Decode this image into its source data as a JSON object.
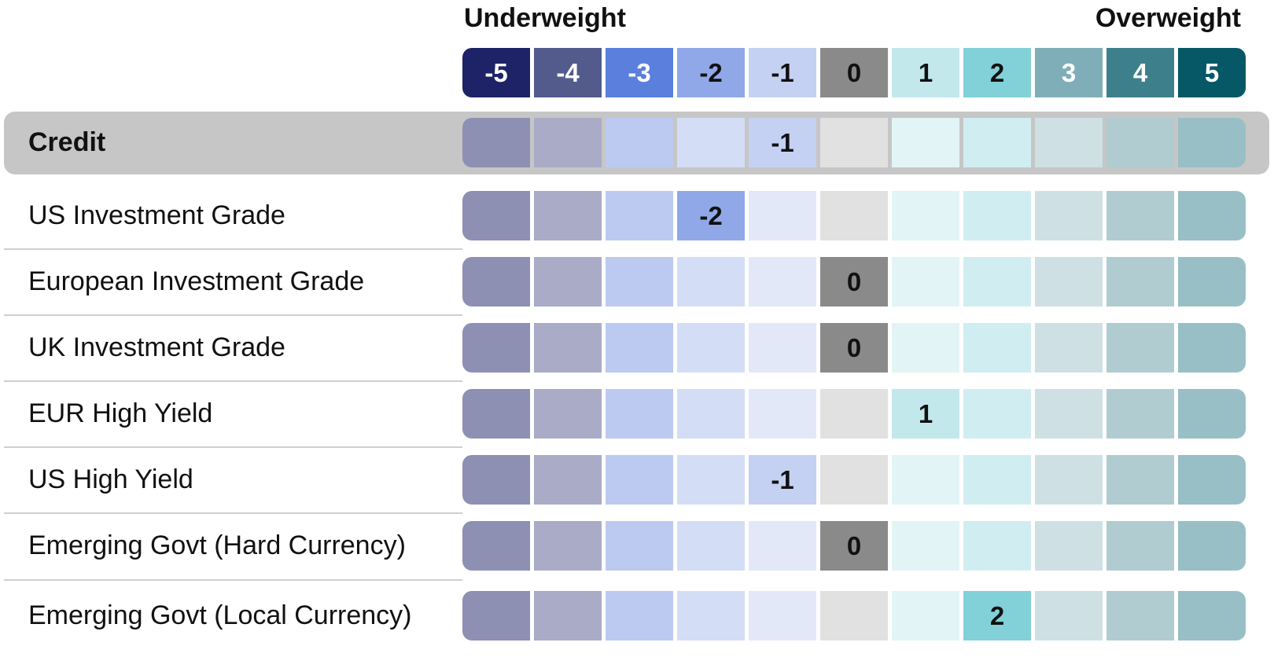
{
  "header": {
    "underweight": "Underweight",
    "overweight": "Overweight"
  },
  "scale": [
    {
      "value": "-5",
      "color": "#1d2366",
      "text": "#ffffff"
    },
    {
      "value": "-4",
      "color": "#535a8c",
      "text": "#ffffff"
    },
    {
      "value": "-3",
      "color": "#5a7fdc",
      "text": "#ffffff"
    },
    {
      "value": "-2",
      "color": "#91a8e8",
      "text": "#111111"
    },
    {
      "value": "-1",
      "color": "#c5d1f2",
      "text": "#111111"
    },
    {
      "value": "0",
      "color": "#8a8a8a",
      "text": "#111111"
    },
    {
      "value": "1",
      "color": "#c2e8ec",
      "text": "#111111"
    },
    {
      "value": "2",
      "color": "#82d0d8",
      "text": "#111111"
    },
    {
      "value": "3",
      "color": "#80aeb8",
      "text": "#ffffff"
    },
    {
      "value": "4",
      "color": "#3d808c",
      "text": "#ffffff"
    },
    {
      "value": "5",
      "color": "#075866",
      "text": "#ffffff"
    }
  ],
  "bg_colors": [
    "#8d8fb3",
    "#a9abc7",
    "#bccaf1",
    "#d4ddf6",
    "#e3e8f8",
    "#e1e1e1",
    "#e2f4f6",
    "#d0eef1",
    "#cfe0e4",
    "#b0ccd1",
    "#98bfc6"
  ],
  "chart_data": {
    "type": "table",
    "columns": [
      "-5",
      "-4",
      "-3",
      "-2",
      "-1",
      "0",
      "1",
      "2",
      "3",
      "4",
      "5"
    ],
    "rows": [
      {
        "label": "Credit",
        "value": -1,
        "category": true
      },
      {
        "label": "US Investment Grade",
        "value": -2
      },
      {
        "label": "European Investment Grade",
        "value": 0
      },
      {
        "label": "UK Investment Grade",
        "value": 0
      },
      {
        "label": "EUR High Yield",
        "value": 1
      },
      {
        "label": "US High Yield",
        "value": -1
      },
      {
        "label": "Emerging Govt (Hard Currency)",
        "value": 0
      },
      {
        "label": "Emerging Govt (Local Currency)",
        "value": 2
      }
    ]
  }
}
